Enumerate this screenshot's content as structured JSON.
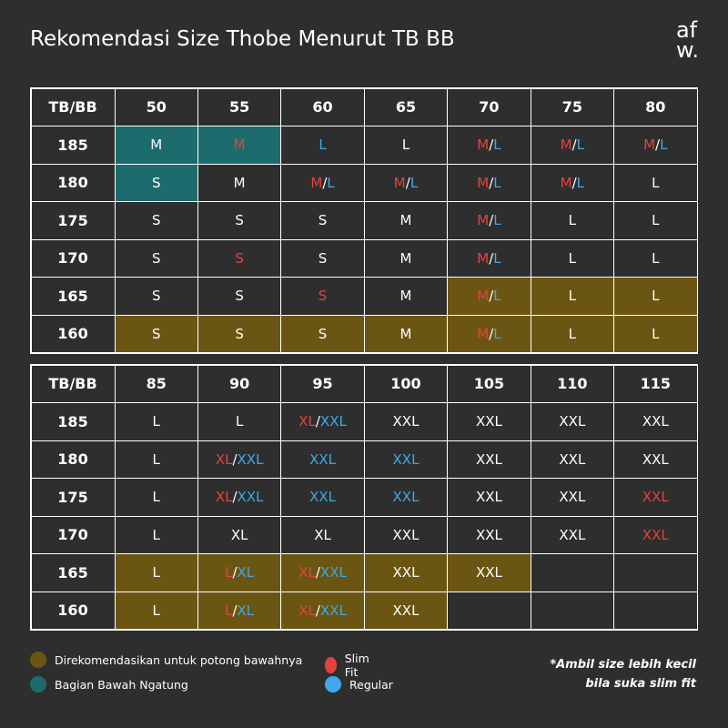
{
  "header": {
    "title": "Rekomendasi Size Thobe Menurut TB BB",
    "logo": [
      "af",
      "w."
    ]
  },
  "colors": {
    "slim": "#e8413c",
    "regular": "#3ea8ea",
    "rec": "#6b5512",
    "hang": "#1d6b6c"
  },
  "tables": [
    {
      "columns": [
        "TB/BB",
        "50",
        "55",
        "60",
        "65",
        "70",
        "75",
        "80"
      ],
      "rows": [
        {
          "tb": "185",
          "cells": [
            {
              "bg": "hang",
              "parts": [
                {
                  "t": "M"
                }
              ]
            },
            {
              "bg": "hang",
              "parts": [
                {
                  "t": "M",
                  "c": "slim"
                }
              ]
            },
            {
              "parts": [
                {
                  "t": "L",
                  "c": "regular"
                }
              ]
            },
            {
              "parts": [
                {
                  "t": "L"
                }
              ]
            },
            {
              "parts": [
                {
                  "t": "M",
                  "c": "slim"
                },
                {
                  "t": "/"
                },
                {
                  "t": "L",
                  "c": "regular"
                }
              ]
            },
            {
              "parts": [
                {
                  "t": "M",
                  "c": "slim"
                },
                {
                  "t": "/"
                },
                {
                  "t": "L",
                  "c": "regular"
                }
              ]
            },
            {
              "parts": [
                {
                  "t": "M",
                  "c": "slim"
                },
                {
                  "t": "/"
                },
                {
                  "t": "L",
                  "c": "regular"
                }
              ]
            }
          ]
        },
        {
          "tb": "180",
          "cells": [
            {
              "bg": "hang",
              "parts": [
                {
                  "t": "S"
                }
              ]
            },
            {
              "parts": [
                {
                  "t": "M"
                }
              ]
            },
            {
              "parts": [
                {
                  "t": "M",
                  "c": "slim"
                },
                {
                  "t": "/"
                },
                {
                  "t": "L",
                  "c": "regular"
                }
              ]
            },
            {
              "parts": [
                {
                  "t": "M",
                  "c": "slim"
                },
                {
                  "t": "/"
                },
                {
                  "t": "L",
                  "c": "regular"
                }
              ]
            },
            {
              "parts": [
                {
                  "t": "M",
                  "c": "slim"
                },
                {
                  "t": "/"
                },
                {
                  "t": "L",
                  "c": "regular"
                }
              ]
            },
            {
              "parts": [
                {
                  "t": "M",
                  "c": "slim"
                },
                {
                  "t": "/"
                },
                {
                  "t": "L",
                  "c": "regular"
                }
              ]
            },
            {
              "parts": [
                {
                  "t": "L"
                }
              ]
            }
          ]
        },
        {
          "tb": "175",
          "cells": [
            {
              "parts": [
                {
                  "t": "S"
                }
              ]
            },
            {
              "parts": [
                {
                  "t": "S"
                }
              ]
            },
            {
              "parts": [
                {
                  "t": "S"
                }
              ]
            },
            {
              "parts": [
                {
                  "t": "M"
                }
              ]
            },
            {
              "parts": [
                {
                  "t": "M",
                  "c": "slim"
                },
                {
                  "t": "/"
                },
                {
                  "t": "L",
                  "c": "regular"
                }
              ]
            },
            {
              "parts": [
                {
                  "t": "L"
                }
              ]
            },
            {
              "parts": [
                {
                  "t": "L"
                }
              ]
            }
          ]
        },
        {
          "tb": "170",
          "cells": [
            {
              "parts": [
                {
                  "t": "S"
                }
              ]
            },
            {
              "parts": [
                {
                  "t": "S",
                  "c": "slim"
                }
              ]
            },
            {
              "parts": [
                {
                  "t": "S"
                }
              ]
            },
            {
              "parts": [
                {
                  "t": "M"
                }
              ]
            },
            {
              "parts": [
                {
                  "t": "M",
                  "c": "slim"
                },
                {
                  "t": "/"
                },
                {
                  "t": "L",
                  "c": "regular"
                }
              ]
            },
            {
              "parts": [
                {
                  "t": "L"
                }
              ]
            },
            {
              "parts": [
                {
                  "t": "L"
                }
              ]
            }
          ]
        },
        {
          "tb": "165",
          "cells": [
            {
              "parts": [
                {
                  "t": "S"
                }
              ]
            },
            {
              "parts": [
                {
                  "t": "S"
                }
              ]
            },
            {
              "parts": [
                {
                  "t": "S",
                  "c": "slim"
                }
              ]
            },
            {
              "parts": [
                {
                  "t": "M"
                }
              ]
            },
            {
              "bg": "rec",
              "parts": [
                {
                  "t": "M",
                  "c": "slim"
                },
                {
                  "t": "/"
                },
                {
                  "t": "L",
                  "c": "regular"
                }
              ]
            },
            {
              "bg": "rec",
              "parts": [
                {
                  "t": "L"
                }
              ]
            },
            {
              "bg": "rec",
              "parts": [
                {
                  "t": "L"
                }
              ]
            }
          ]
        },
        {
          "tb": "160",
          "cells": [
            {
              "bg": "rec",
              "parts": [
                {
                  "t": "S"
                }
              ]
            },
            {
              "bg": "rec",
              "parts": [
                {
                  "t": "S"
                }
              ]
            },
            {
              "bg": "rec",
              "parts": [
                {
                  "t": "S"
                }
              ]
            },
            {
              "bg": "rec",
              "parts": [
                {
                  "t": "M"
                }
              ]
            },
            {
              "bg": "rec",
              "parts": [
                {
                  "t": "M",
                  "c": "slim"
                },
                {
                  "t": "/"
                },
                {
                  "t": "L",
                  "c": "regular"
                }
              ]
            },
            {
              "bg": "rec",
              "parts": [
                {
                  "t": "L"
                }
              ]
            },
            {
              "bg": "rec",
              "parts": [
                {
                  "t": "L"
                }
              ]
            }
          ]
        }
      ]
    },
    {
      "columns": [
        "TB/BB",
        "85",
        "90",
        "95",
        "100",
        "105",
        "110",
        "115"
      ],
      "rows": [
        {
          "tb": "185",
          "cells": [
            {
              "parts": [
                {
                  "t": "L"
                }
              ]
            },
            {
              "parts": [
                {
                  "t": "L"
                }
              ]
            },
            {
              "parts": [
                {
                  "t": "XL",
                  "c": "slim"
                },
                {
                  "t": "/"
                },
                {
                  "t": "XXL",
                  "c": "regular"
                }
              ]
            },
            {
              "parts": [
                {
                  "t": "XXL"
                }
              ]
            },
            {
              "parts": [
                {
                  "t": "XXL"
                }
              ]
            },
            {
              "parts": [
                {
                  "t": "XXL"
                }
              ]
            },
            {
              "parts": [
                {
                  "t": "XXL"
                }
              ]
            }
          ]
        },
        {
          "tb": "180",
          "cells": [
            {
              "parts": [
                {
                  "t": "L"
                }
              ]
            },
            {
              "parts": [
                {
                  "t": "XL",
                  "c": "slim"
                },
                {
                  "t": "/"
                },
                {
                  "t": "XXL",
                  "c": "regular"
                }
              ]
            },
            {
              "parts": [
                {
                  "t": "XXL",
                  "c": "regular"
                }
              ]
            },
            {
              "parts": [
                {
                  "t": "XXL",
                  "c": "regular"
                }
              ]
            },
            {
              "parts": [
                {
                  "t": "XXL"
                }
              ]
            },
            {
              "parts": [
                {
                  "t": "XXL"
                }
              ]
            },
            {
              "parts": [
                {
                  "t": "XXL"
                }
              ]
            }
          ]
        },
        {
          "tb": "175",
          "cells": [
            {
              "parts": [
                {
                  "t": "L"
                }
              ]
            },
            {
              "parts": [
                {
                  "t": "XL",
                  "c": "slim"
                },
                {
                  "t": "/"
                },
                {
                  "t": "XXL",
                  "c": "regular"
                }
              ]
            },
            {
              "parts": [
                {
                  "t": "XXL",
                  "c": "regular"
                }
              ]
            },
            {
              "parts": [
                {
                  "t": "XXL",
                  "c": "regular"
                }
              ]
            },
            {
              "parts": [
                {
                  "t": "XXL"
                }
              ]
            },
            {
              "parts": [
                {
                  "t": "XXL"
                }
              ]
            },
            {
              "parts": [
                {
                  "t": "XXL",
                  "c": "slim"
                }
              ]
            }
          ]
        },
        {
          "tb": "170",
          "cells": [
            {
              "parts": [
                {
                  "t": "L"
                }
              ]
            },
            {
              "parts": [
                {
                  "t": "XL"
                }
              ]
            },
            {
              "parts": [
                {
                  "t": "XL"
                }
              ]
            },
            {
              "parts": [
                {
                  "t": "XXL"
                }
              ]
            },
            {
              "parts": [
                {
                  "t": "XXL"
                }
              ]
            },
            {
              "parts": [
                {
                  "t": "XXL"
                }
              ]
            },
            {
              "parts": [
                {
                  "t": "XXL",
                  "c": "slim"
                }
              ]
            }
          ]
        },
        {
          "tb": "165",
          "cells": [
            {
              "bg": "rec",
              "parts": [
                {
                  "t": "L"
                }
              ]
            },
            {
              "bg": "rec",
              "parts": [
                {
                  "t": "L",
                  "c": "slim"
                },
                {
                  "t": "/"
                },
                {
                  "t": "XL",
                  "c": "regular"
                }
              ]
            },
            {
              "bg": "rec",
              "parts": [
                {
                  "t": "XL",
                  "c": "slim"
                },
                {
                  "t": "/"
                },
                {
                  "t": "XXL",
                  "c": "regular"
                }
              ]
            },
            {
              "bg": "rec",
              "parts": [
                {
                  "t": "XXL"
                }
              ]
            },
            {
              "bg": "rec",
              "parts": [
                {
                  "t": "XXL"
                }
              ]
            },
            {
              "parts": []
            },
            {
              "parts": []
            }
          ]
        },
        {
          "tb": "160",
          "cells": [
            {
              "bg": "rec",
              "parts": [
                {
                  "t": "L"
                }
              ]
            },
            {
              "bg": "rec",
              "parts": [
                {
                  "t": "L",
                  "c": "slim"
                },
                {
                  "t": "/"
                },
                {
                  "t": "XL",
                  "c": "regular"
                }
              ]
            },
            {
              "bg": "rec",
              "parts": [
                {
                  "t": "XL",
                  "c": "slim"
                },
                {
                  "t": "/"
                },
                {
                  "t": "XXL",
                  "c": "regular"
                }
              ]
            },
            {
              "bg": "rec",
              "parts": [
                {
                  "t": "XXL"
                }
              ]
            },
            {
              "parts": []
            },
            {
              "parts": []
            },
            {
              "parts": []
            }
          ]
        }
      ]
    }
  ],
  "legend": [
    {
      "label": "Direkomendasikan untuk potong bawahnya",
      "c": "rec"
    },
    {
      "label": "Slim Fit",
      "c": "slim"
    },
    {
      "label": "Bagian Bawah Ngatung",
      "c": "hang"
    },
    {
      "label": "Regular",
      "c": "regular"
    }
  ],
  "note": [
    "*Ambil size lebih kecil",
    "bila suka slim fit"
  ]
}
